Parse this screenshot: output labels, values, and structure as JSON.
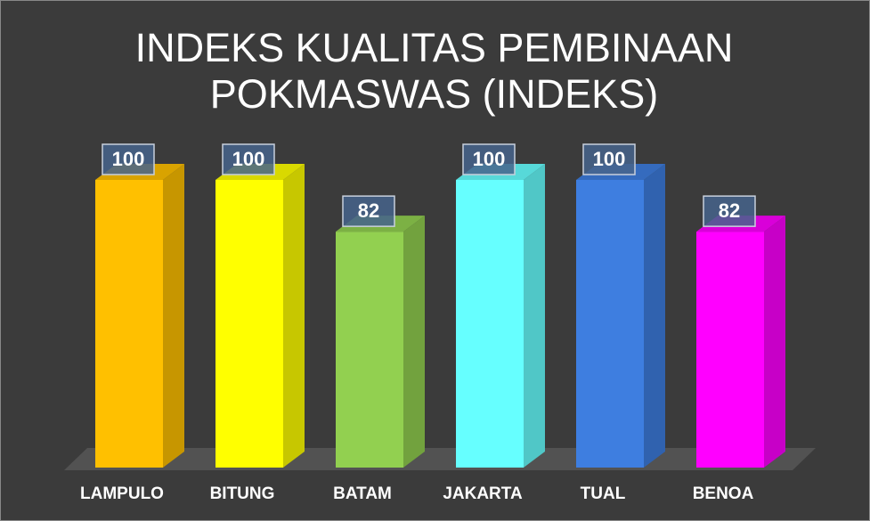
{
  "chart_data": {
    "type": "bar3d",
    "title": "INDEKS KUALITAS PEMBINAAN POKMASWAS (INDEKS)",
    "categories": [
      "LAMPULO",
      "BITUNG",
      "BATAM",
      "JAKARTA",
      "TUAL",
      "BENOA"
    ],
    "values": [
      100,
      100,
      82,
      100,
      100,
      82
    ],
    "colors": [
      "#ffc000",
      "#ffff00",
      "#92d050",
      "#66ffff",
      "#3e7ee0",
      "#ff00ff"
    ]
  }
}
